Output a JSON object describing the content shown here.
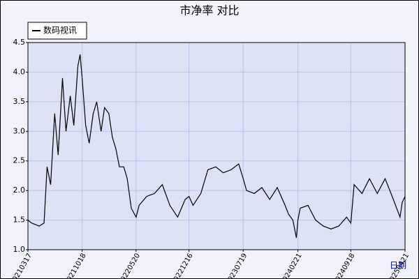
{
  "chart_data": {
    "type": "line",
    "title": "市净率  对比",
    "x_label": "日期",
    "x": [
      "20210317",
      "20210401",
      "20210501",
      "20210520",
      "20210601",
      "20210615",
      "20210701",
      "20210715",
      "20210801",
      "20210815",
      "20210901",
      "20210915",
      "20211001",
      "20211010",
      "20211018",
      "20211101",
      "20211115",
      "20211201",
      "20211215",
      "20220101",
      "20220115",
      "20220201",
      "20220215",
      "20220301",
      "20220315",
      "20220401",
      "20220415",
      "20220501",
      "20220520",
      "20220601",
      "20220701",
      "20220801",
      "20220901",
      "20221001",
      "20221101",
      "20221201",
      "20221216",
      "20230101",
      "20230201",
      "20230301",
      "20230401",
      "20230501",
      "20230601",
      "20230701",
      "20230719",
      "20230801",
      "20230901",
      "20231001",
      "20231101",
      "20231201",
      "20240101",
      "20240115",
      "20240201",
      "20240215",
      "20240221",
      "20240301",
      "20240401",
      "20240501",
      "20240601",
      "20240701",
      "20240801",
      "20240901",
      "20240918",
      "20241001",
      "20241101",
      "20241201",
      "20250101",
      "20250201",
      "20250301",
      "20250401",
      "20250410",
      "20250421"
    ],
    "series": [
      {
        "name": "数码视讯",
        "color": "#000000",
        "values": [
          1.5,
          1.45,
          1.4,
          1.45,
          2.4,
          2.1,
          3.3,
          2.6,
          3.9,
          3.0,
          3.6,
          3.1,
          4.1,
          4.3,
          3.9,
          3.1,
          2.8,
          3.3,
          3.5,
          3.0,
          3.4,
          3.3,
          2.9,
          2.7,
          2.4,
          2.4,
          2.2,
          1.7,
          1.55,
          1.75,
          1.9,
          1.95,
          2.1,
          1.75,
          1.55,
          1.85,
          1.9,
          1.75,
          1.95,
          2.35,
          2.4,
          2.3,
          2.35,
          2.45,
          2.2,
          2.0,
          1.95,
          2.05,
          1.85,
          2.05,
          1.75,
          1.6,
          1.5,
          1.2,
          1.5,
          1.7,
          1.75,
          1.5,
          1.4,
          1.35,
          1.4,
          1.55,
          1.45,
          2.1,
          1.95,
          2.2,
          1.95,
          2.2,
          1.9,
          1.55,
          1.8,
          1.9
        ]
      }
    ],
    "xlim": [
      "20210317",
      "20250421"
    ],
    "xticks": [
      "20210317",
      "20211018",
      "20220520",
      "20221216",
      "20230719",
      "20240221",
      "20240918",
      "20250421"
    ],
    "ylim": [
      1,
      4.5
    ],
    "yticks": [
      {
        "value": 1,
        "label": "1.0"
      },
      1.5,
      {
        "value": 2,
        "label": "2.0"
      },
      2.5,
      {
        "value": 3,
        "label": "3.0"
      },
      3.5,
      {
        "value": 4,
        "label": "4.0"
      },
      4.5
    ],
    "grid": true,
    "legend": "top-left"
  }
}
